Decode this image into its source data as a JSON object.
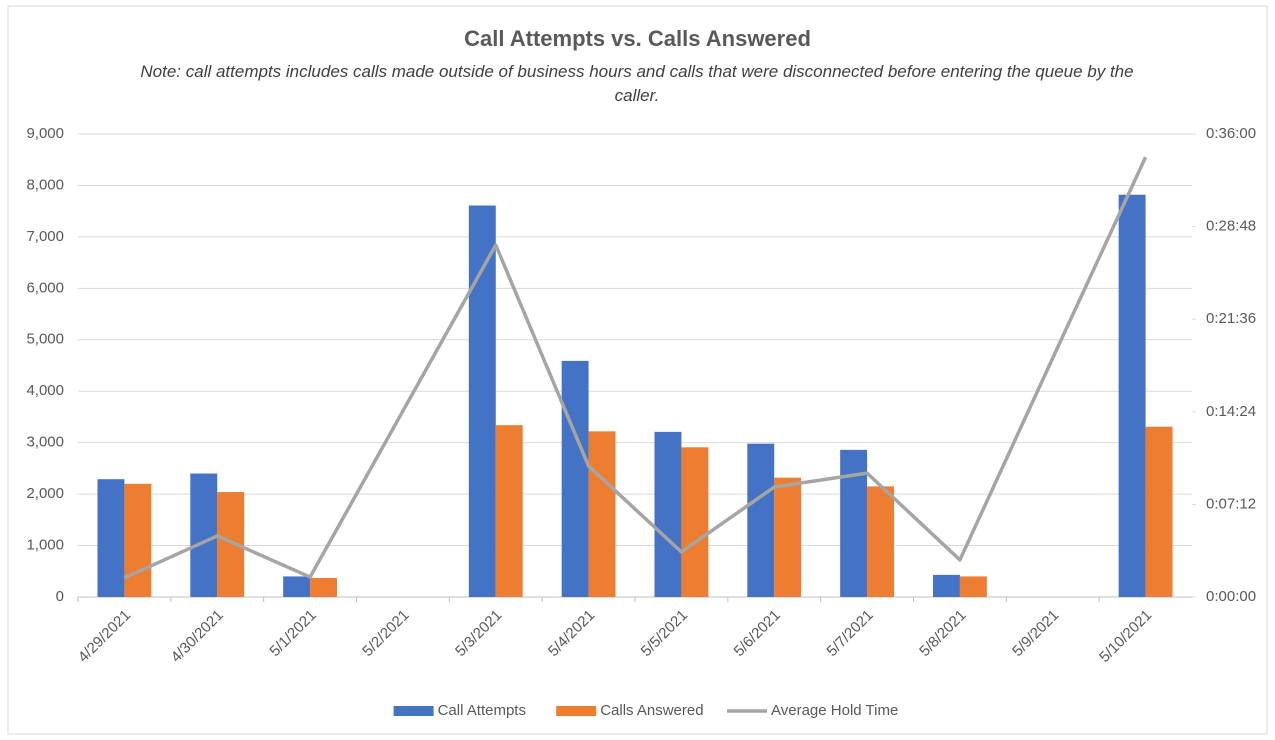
{
  "chart_data": {
    "type": "bar-line",
    "title": "Call Attempts vs. Calls Answered",
    "subtitle": "Note: call attempts includes calls made outside of business hours and calls that were disconnected before entering the queue by the caller.",
    "categories": [
      "4/29/2021",
      "4/30/2021",
      "5/1/2021",
      "5/2/2021",
      "5/3/2021",
      "5/4/2021",
      "5/5/2021",
      "5/6/2021",
      "5/7/2021",
      "5/8/2021",
      "5/9/2021",
      "5/10/2021"
    ],
    "series": [
      {
        "name": "Call Attempts",
        "type": "bar",
        "color": "#4472c4",
        "values": [
          2290,
          2400,
          400,
          null,
          7610,
          4590,
          3210,
          2980,
          2860,
          430,
          null,
          7820
        ]
      },
      {
        "name": "Calls Answered",
        "type": "bar",
        "color": "#ed7d31",
        "values": [
          2200,
          2040,
          370,
          null,
          3340,
          3220,
          2910,
          2320,
          2150,
          400,
          null,
          3310
        ]
      },
      {
        "name": "Average Hold Time",
        "type": "line",
        "axis": "y2",
        "color": "#a5a5a5",
        "values": [
          89,
          285,
          93,
          868,
          1642,
          611,
          210,
          513,
          578,
          173,
          1115,
          2052
        ]
      }
    ],
    "ylim": [
      0,
      9000
    ],
    "yticks": [
      0,
      {
        "value": 1000,
        "label": "1,000"
      },
      {
        "value": 2000,
        "label": "2,000"
      },
      {
        "value": 3000,
        "label": "3,000"
      },
      {
        "value": 4000,
        "label": "4,000"
      },
      {
        "value": 5000,
        "label": "5,000"
      },
      {
        "value": 6000,
        "label": "6,000"
      },
      {
        "value": 7000,
        "label": "7,000"
      },
      {
        "value": 8000,
        "label": "8,000"
      },
      {
        "value": 9000,
        "label": "9,000"
      }
    ],
    "y2lim": [
      0,
      2160
    ],
    "y2ticks": [
      {
        "value": 0,
        "label": "0:00:00"
      },
      {
        "value": 432,
        "label": "0:07:12"
      },
      {
        "value": 864,
        "label": "0:14:24"
      },
      {
        "value": 1296,
        "label": "0:21:36"
      },
      {
        "value": 1728,
        "label": "0:28:48"
      },
      {
        "value": 2160,
        "label": "0:36:00"
      }
    ],
    "grid": true,
    "legend": "bottom"
  }
}
